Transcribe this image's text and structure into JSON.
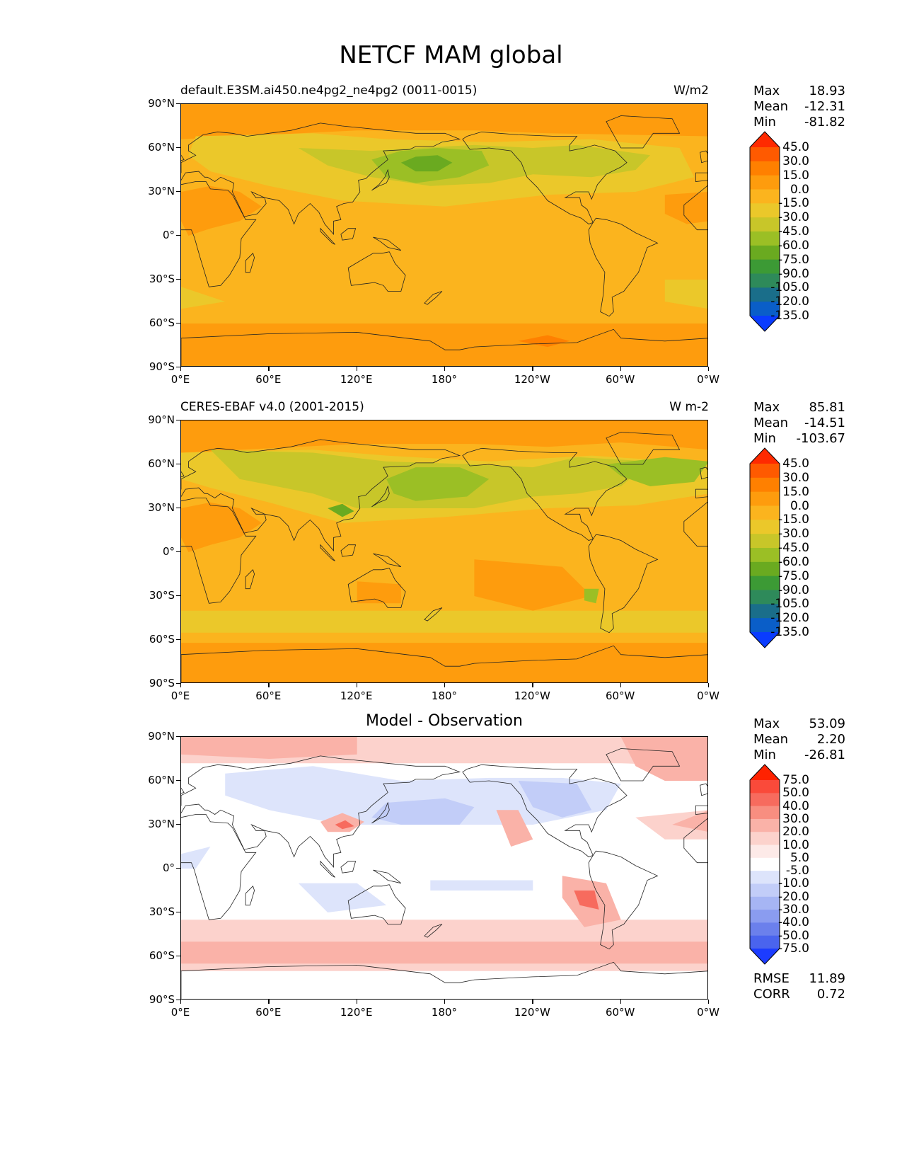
{
  "figure": {
    "title": "NETCF MAM global"
  },
  "axes": {
    "y_ticks": [
      "90°N",
      "60°N",
      "30°N",
      "0°",
      "30°S",
      "60°S",
      "90°S"
    ],
    "x_ticks": [
      "0°E",
      "60°E",
      "120°E",
      "180°",
      "120°W",
      "60°W",
      "0°W"
    ]
  },
  "panels": [
    {
      "id": "model",
      "left_title": "default.E3SM.ai450.ne4pg2_ne4pg2 (0011-0015)",
      "right_title": "W/m2",
      "center_title": "",
      "stats": [
        {
          "label": "Max",
          "value": "18.93"
        },
        {
          "label": "Mean",
          "value": "-12.31"
        },
        {
          "label": "Min",
          "value": "-81.82"
        }
      ],
      "colorbar_levels": [
        "45.0",
        "30.0",
        "15.0",
        "0.0",
        "-15.0",
        "-30.0",
        "-45.0",
        "-60.0",
        "-75.0",
        "-90.0",
        "-105.0",
        "-120.0",
        "-135.0"
      ]
    },
    {
      "id": "obs",
      "left_title": "CERES-EBAF v4.0 (2001-2015)",
      "right_title": "W m-2",
      "center_title": "",
      "stats": [
        {
          "label": "Max",
          "value": "85.81"
        },
        {
          "label": "Mean",
          "value": "-14.51"
        },
        {
          "label": "Min",
          "value": "-103.67"
        }
      ],
      "colorbar_levels": [
        "45.0",
        "30.0",
        "15.0",
        "0.0",
        "-15.0",
        "-30.0",
        "-45.0",
        "-60.0",
        "-75.0",
        "-90.0",
        "-105.0",
        "-120.0",
        "-135.0"
      ]
    },
    {
      "id": "diff",
      "left_title": "",
      "right_title": "",
      "center_title": "Model - Observation",
      "stats": [
        {
          "label": "Max",
          "value": "53.09"
        },
        {
          "label": "Mean",
          "value": "2.20"
        },
        {
          "label": "Min",
          "value": "-26.81"
        }
      ],
      "extra_stats": [
        {
          "label": "RMSE",
          "value": "11.89"
        },
        {
          "label": "CORR",
          "value": "0.72"
        }
      ],
      "colorbar_levels": [
        "75.0",
        "50.0",
        "40.0",
        "30.0",
        "20.0",
        "10.0",
        "5.0",
        "-5.0",
        "-10.0",
        "-20.0",
        "-30.0",
        "-40.0",
        "-50.0",
        "-75.0"
      ]
    }
  ],
  "colors": {
    "model_obs_scale": [
      "#ff2a00",
      "#ff5a00",
      "#ff8000",
      "#fe9c0d",
      "#fbb41e",
      "#ebc82a",
      "#c8c629",
      "#9bbf25",
      "#6aaa20",
      "#3c9a35",
      "#2e8a5a",
      "#1a6e8a",
      "#0a5ec8",
      "#0a3cff"
    ],
    "diff_scale": [
      "#ff2200",
      "#fa4a3a",
      "#f76b5e",
      "#f88e80",
      "#fab2a8",
      "#fcd2cc",
      "#fdeae8",
      "#ffffff",
      "#dde4fb",
      "#c2cdf8",
      "#a6b5f4",
      "#8a9cf0",
      "#6b80ec",
      "#4a64ee",
      "#1c3cff"
    ]
  }
}
